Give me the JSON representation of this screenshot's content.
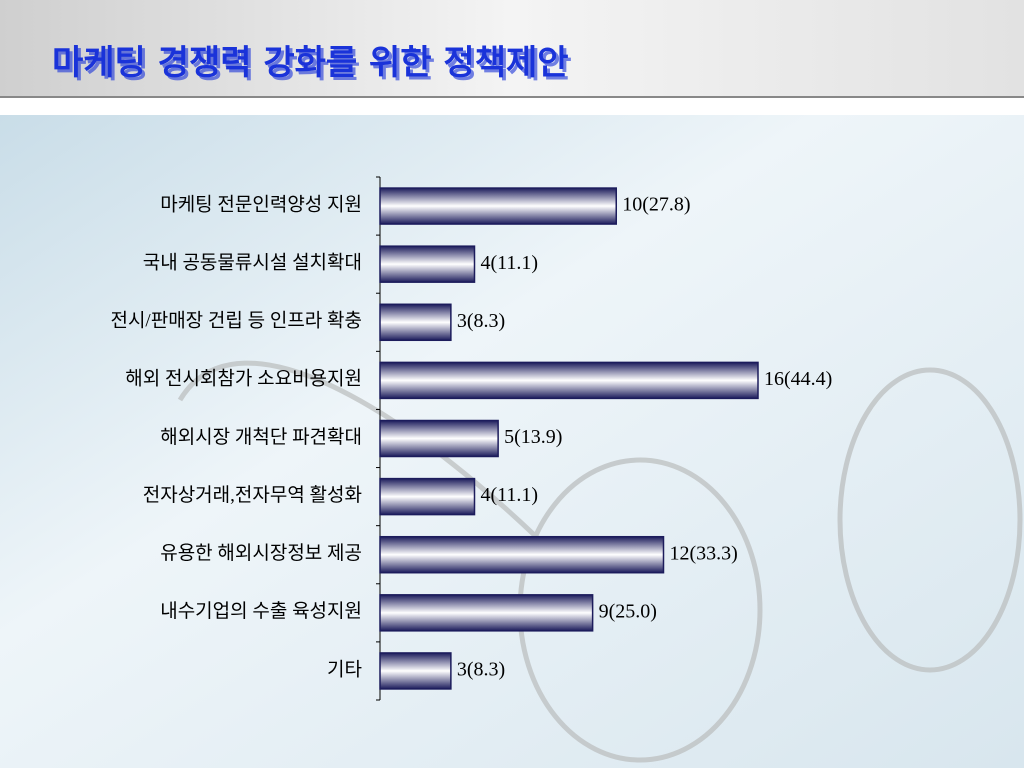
{
  "chart_data": {
    "type": "bar",
    "orientation": "horizontal",
    "title": "마케팅 경쟁력 강화를 위한 정책제안",
    "categories": [
      "마케팅 전문인력양성 지원",
      "국내 공동물류시설 설치확대",
      "전시/판매장 건립 등 인프라 확충",
      "해외 전시회참가 소요비용지원",
      "해외시장 개척단 파견확대",
      "전자상거래,전자무역 활성화",
      "유용한 해외시장정보 제공",
      "내수기업의 수출 육성지원",
      "기타"
    ],
    "values": [
      10,
      4,
      3,
      16,
      5,
      4,
      12,
      9,
      3
    ],
    "value_labels": [
      "10(27.8)",
      "4(11.1)",
      "3(8.3)",
      "16(44.4)",
      "5(13.9)",
      "4(11.1)",
      "12(33.3)",
      "9(25.0)",
      "3(8.3)"
    ],
    "color": "#1c1c5c"
  }
}
